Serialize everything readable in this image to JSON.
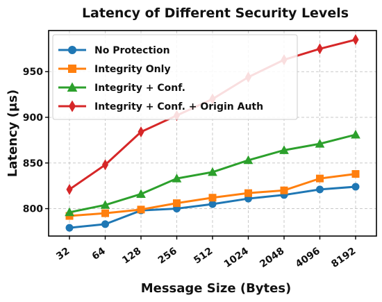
{
  "chart_data": {
    "type": "line",
    "title": "Latency of Different Security Levels",
    "xlabel": "Message Size (Bytes)",
    "ylabel": "Latency (μs)",
    "categories": [
      "32",
      "64",
      "128",
      "256",
      "512",
      "1024",
      "2048",
      "4096",
      "8192"
    ],
    "ylim": [
      770,
      995
    ],
    "yticks": [
      800,
      850,
      900,
      950
    ],
    "grid": true,
    "legend_position": "top-left",
    "series": [
      {
        "name": "No Protection",
        "color": "#1f77b4",
        "marker": "circle",
        "values": [
          779,
          783,
          798,
          800,
          805,
          811,
          815,
          821,
          824
        ]
      },
      {
        "name": "Integrity Only",
        "color": "#ff7f0e",
        "marker": "square",
        "values": [
          792,
          795,
          799,
          806,
          812,
          817,
          820,
          833,
          838
        ]
      },
      {
        "name": "Integrity + Conf.",
        "color": "#2ca02c",
        "marker": "triangle",
        "values": [
          796,
          804,
          816,
          833,
          840,
          853,
          864,
          871,
          881
        ]
      },
      {
        "name": "Integrity + Conf. + Origin Auth",
        "color": "#d62728",
        "marker": "diamond",
        "values": [
          821,
          848,
          884,
          902,
          920,
          944,
          963,
          975,
          985
        ]
      }
    ]
  }
}
